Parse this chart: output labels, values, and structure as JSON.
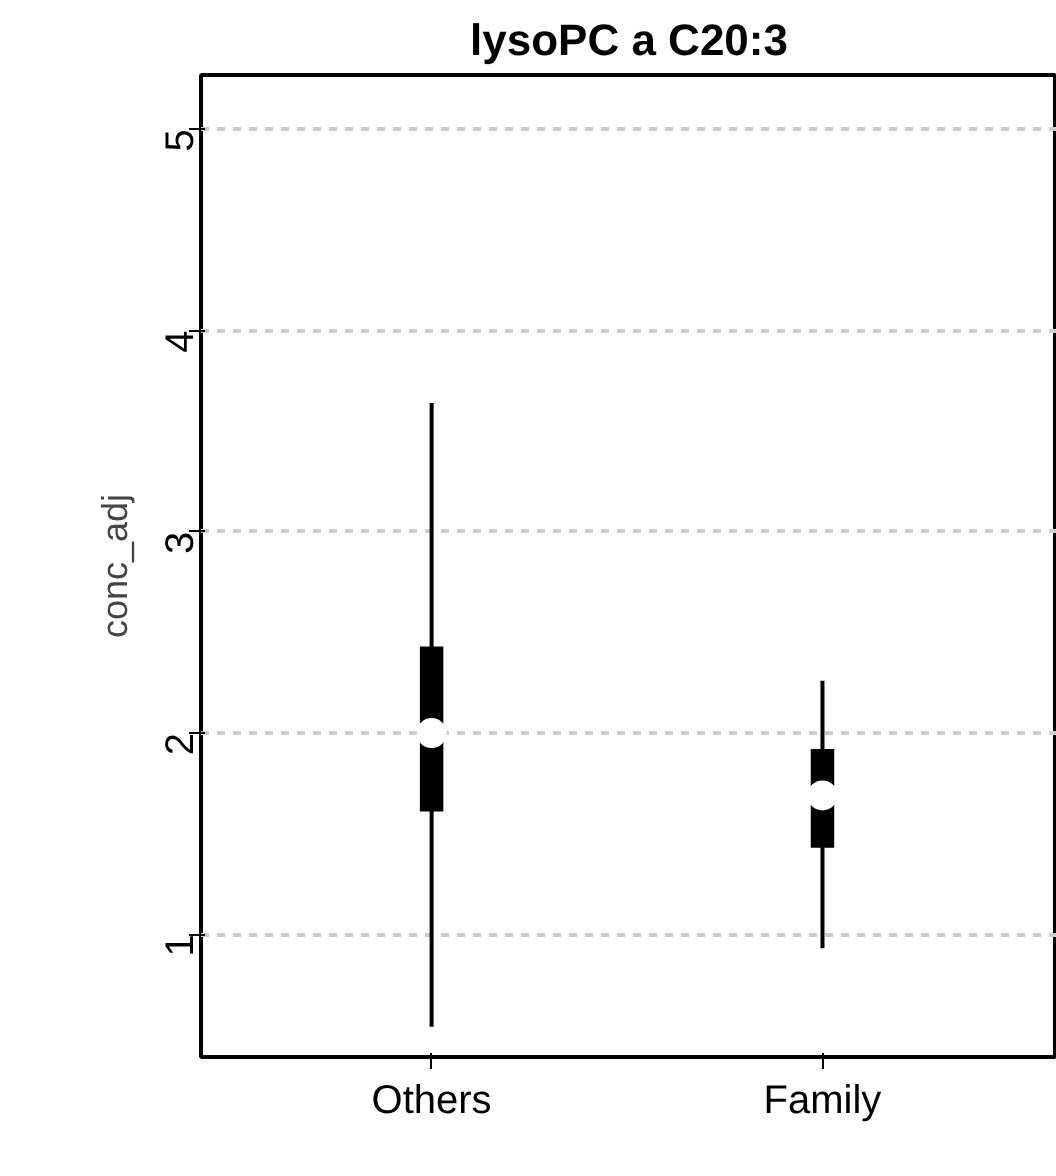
{
  "chart_data": {
    "type": "box",
    "title": "lysoPC a C20:3",
    "ylabel": "conc_adj",
    "categories": [
      "Others",
      "Family"
    ],
    "boxes": [
      {
        "low": 0.54,
        "q1": 1.61,
        "median": 2.0,
        "q3": 2.43,
        "high": 3.64
      },
      {
        "low": 0.93,
        "q1": 1.43,
        "median": 1.69,
        "q3": 1.92,
        "high": 2.26
      }
    ],
    "color": "#000000",
    "ylim": [
      0.39,
      5.27
    ],
    "yticks": [
      1,
      2,
      3,
      4,
      5
    ],
    "grid": "y"
  }
}
